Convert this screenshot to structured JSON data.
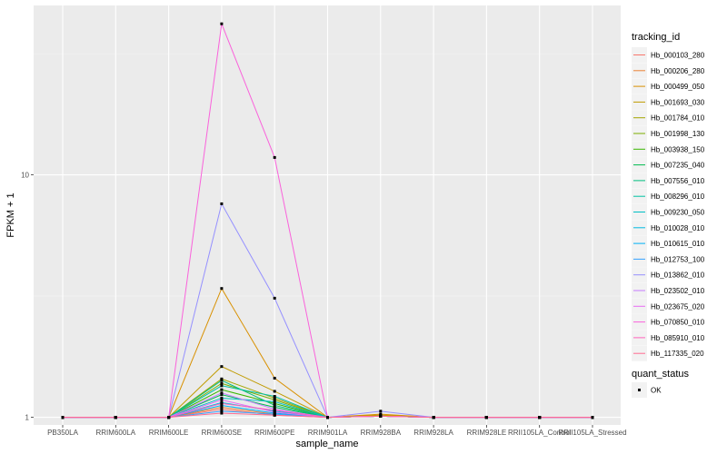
{
  "chart_data": {
    "type": "line",
    "title": "",
    "xlabel": "sample_name",
    "ylabel": "FPKM + 1",
    "y_scale": "log10",
    "ylim": [
      0.93,
      50
    ],
    "y_ticks": [
      1,
      10
    ],
    "y_tick_labels": [
      "1",
      "10"
    ],
    "grid": true,
    "panel_background": "#ebebeb",
    "legend_position": "right",
    "categories": [
      "PB350LA",
      "RRIM600LA",
      "RRIM600LE",
      "RRIM600SE",
      "RRIM600PE",
      "RRIM901LA",
      "RRIM928BA",
      "RRIM928LA",
      "RRIM928LE",
      "RRII105LA_Control",
      "RRII105LA_Stressed"
    ],
    "color_legend": {
      "title": "tracking_id",
      "items": [
        {
          "label": "Hb_000103_280",
          "color": "#F8766D"
        },
        {
          "label": "Hb_000206_280",
          "color": "#EB8335"
        },
        {
          "label": "Hb_000499_050",
          "color": "#D89000"
        },
        {
          "label": "Hb_001693_030",
          "color": "#C09B00"
        },
        {
          "label": "Hb_001784_010",
          "color": "#A3A500"
        },
        {
          "label": "Hb_001998_130",
          "color": "#7CAE00"
        },
        {
          "label": "Hb_003938_150",
          "color": "#39B600"
        },
        {
          "label": "Hb_007235_040",
          "color": "#00BB4E"
        },
        {
          "label": "Hb_007556_010",
          "color": "#00BF7D"
        },
        {
          "label": "Hb_008296_010",
          "color": "#00C1A3"
        },
        {
          "label": "Hb_009230_050",
          "color": "#00BFC4"
        },
        {
          "label": "Hb_010028_010",
          "color": "#00BAE0"
        },
        {
          "label": "Hb_010615_010",
          "color": "#00B0F6"
        },
        {
          "label": "Hb_012753_100",
          "color": "#35A2FF"
        },
        {
          "label": "Hb_013862_010",
          "color": "#9590FF"
        },
        {
          "label": "Hb_023502_010",
          "color": "#C77CFF"
        },
        {
          "label": "Hb_023675_020",
          "color": "#E76BF3"
        },
        {
          "label": "Hb_070850_010",
          "color": "#FA62DB"
        },
        {
          "label": "Hb_085910_010",
          "color": "#FF62BC"
        },
        {
          "label": "Hb_117335_020",
          "color": "#FF6C91"
        }
      ]
    },
    "shape_legend": {
      "title": "quant_status",
      "items": [
        {
          "label": "OK",
          "shape": "square"
        }
      ]
    },
    "series": [
      {
        "name": "Hb_000103_280",
        "values": [
          1,
          1,
          1,
          1.08,
          1.02,
          1,
          1.01,
          1,
          1,
          1,
          1
        ]
      },
      {
        "name": "Hb_000206_280",
        "values": [
          1,
          1,
          1,
          1.1,
          1.03,
          1,
          1.02,
          1,
          1,
          1,
          1
        ]
      },
      {
        "name": "Hb_000499_050",
        "values": [
          1,
          1,
          1,
          3.4,
          1.45,
          1,
          1.03,
          1,
          1,
          1,
          1
        ]
      },
      {
        "name": "Hb_001693_030",
        "values": [
          1,
          1,
          1,
          1.62,
          1.28,
          1,
          1.02,
          1,
          1,
          1,
          1
        ]
      },
      {
        "name": "Hb_001784_010",
        "values": [
          1,
          1,
          1,
          1.44,
          1.2,
          1,
          1.01,
          1,
          1,
          1,
          1
        ]
      },
      {
        "name": "Hb_001998_130",
        "values": [
          1,
          1,
          1,
          1.38,
          1.18,
          1,
          1.01,
          1,
          1,
          1,
          1
        ]
      },
      {
        "name": "Hb_003938_150",
        "values": [
          1,
          1,
          1,
          1.3,
          1.14,
          1,
          1.01,
          1,
          1,
          1,
          1
        ]
      },
      {
        "name": "Hb_007235_040",
        "values": [
          1,
          1,
          1,
          1.24,
          1.1,
          1,
          1.01,
          1,
          1,
          1,
          1
        ]
      },
      {
        "name": "Hb_007556_010",
        "values": [
          1,
          1,
          1,
          1.42,
          1.12,
          1,
          1.01,
          1,
          1,
          1,
          1
        ]
      },
      {
        "name": "Hb_008296_010",
        "values": [
          1,
          1,
          1,
          1.35,
          1.22,
          1,
          1.01,
          1,
          1,
          1,
          1
        ]
      },
      {
        "name": "Hb_009230_050",
        "values": [
          1,
          1,
          1,
          1.2,
          1.16,
          1,
          1.01,
          1,
          1,
          1,
          1
        ]
      },
      {
        "name": "Hb_010028_010",
        "values": [
          1,
          1,
          1,
          1.15,
          1.06,
          1,
          1.01,
          1,
          1,
          1,
          1
        ]
      },
      {
        "name": "Hb_010615_010",
        "values": [
          1,
          1,
          1,
          1.12,
          1.04,
          1,
          1.01,
          1,
          1,
          1,
          1
        ]
      },
      {
        "name": "Hb_012753_100",
        "values": [
          1,
          1,
          1,
          1.06,
          1.03,
          1,
          1.01,
          1,
          1,
          1,
          1
        ]
      },
      {
        "name": "Hb_013862_010",
        "values": [
          1,
          1,
          1,
          7.6,
          3.1,
          1,
          1.06,
          1,
          1,
          1,
          1
        ]
      },
      {
        "name": "Hb_023502_010",
        "values": [
          1,
          1,
          1,
          1.26,
          1.08,
          1,
          1.01,
          1,
          1,
          1,
          1
        ]
      },
      {
        "name": "Hb_023675_020",
        "values": [
          1,
          1,
          1,
          1.18,
          1.05,
          1,
          1.01,
          1,
          1,
          1,
          1
        ]
      },
      {
        "name": "Hb_070850_010",
        "values": [
          1,
          1,
          1,
          42,
          11.8,
          1,
          1.01,
          1,
          1,
          1,
          1
        ]
      },
      {
        "name": "Hb_085910_010",
        "values": [
          1,
          1,
          1,
          1.14,
          1.07,
          1,
          1.01,
          1,
          1,
          1,
          1
        ]
      },
      {
        "name": "Hb_117335_020",
        "values": [
          1,
          1,
          1,
          1.04,
          1.02,
          1,
          1.01,
          1,
          1,
          1,
          1
        ]
      }
    ]
  }
}
